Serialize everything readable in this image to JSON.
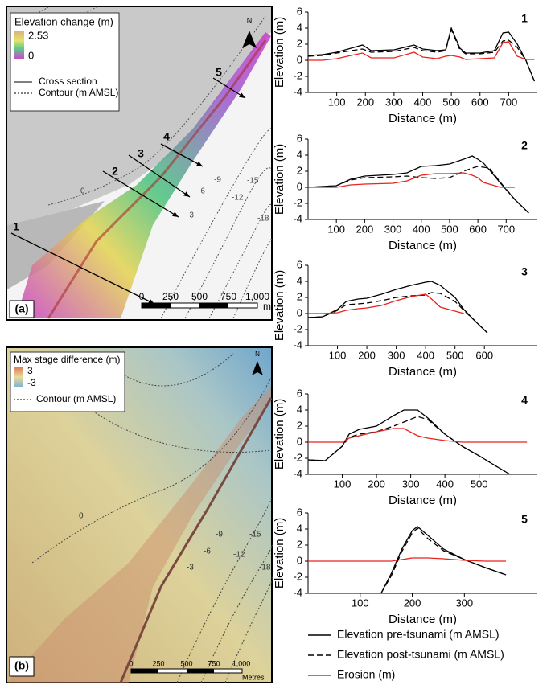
{
  "chart_data": [
    {
      "type": "line",
      "title": "1",
      "x_label": "Distance (m)",
      "y_label": "Elevation (m)",
      "x": [
        0,
        50,
        100,
        150,
        190,
        220,
        300,
        370,
        400,
        450,
        480,
        500,
        530,
        550,
        600,
        650,
        680,
        700,
        730,
        760,
        790
      ],
      "series": [
        {
          "values": [
            0.6,
            0.7,
            1.0,
            1.5,
            1.9,
            1.2,
            1.3,
            1.9,
            1.4,
            1.2,
            1.3,
            4.0,
            1.5,
            0.9,
            0.9,
            1.2,
            3.4,
            3.5,
            2.0,
            0.0,
            -2.6
          ]
        },
        {
          "values": [
            0.5,
            0.6,
            0.9,
            1.2,
            1.4,
            1.0,
            1.1,
            1.6,
            1.2,
            1.0,
            1.2,
            3.8,
            1.3,
            0.8,
            0.8,
            1.0,
            2.4,
            2.5,
            1.6,
            0.0,
            -2.6
          ]
        },
        {
          "values": [
            0,
            0,
            0.2,
            0.6,
            0.9,
            0.3,
            0.3,
            1.0,
            0.4,
            0.2,
            0.5,
            0.6,
            0.4,
            0.1,
            0.2,
            0.3,
            2.2,
            2.3,
            0.5,
            0.1,
            0.1
          ]
        }
      ],
      "xlim": [
        0,
        800
      ],
      "xticks": [
        100,
        200,
        300,
        400,
        500,
        600,
        700
      ],
      "ylim": [
        -4,
        6
      ],
      "yticks": [
        -4,
        -2,
        0,
        2,
        4,
        6
      ]
    },
    {
      "type": "line",
      "title": "2",
      "x_label": "Distance (m)",
      "y_label": "Elevation (m)",
      "x": [
        0,
        100,
        150,
        200,
        300,
        350,
        400,
        450,
        500,
        550,
        580,
        600,
        620,
        640,
        680,
        730,
        780
      ],
      "series": [
        {
          "values": [
            0,
            0.2,
            1.0,
            1.4,
            1.6,
            1.8,
            2.6,
            2.7,
            2.9,
            3.5,
            3.9,
            3.5,
            3.0,
            2.2,
            0.5,
            -1.5,
            -3.2
          ]
        },
        {
          "values": [
            0,
            0.2,
            0.9,
            1.2,
            1.3,
            1.4,
            1.2,
            1.1,
            1.2,
            2.0,
            2.4,
            2.6,
            2.5,
            2.4,
            0.6,
            -1.5,
            -3.2
          ]
        },
        {
          "values": [
            0,
            0,
            0.3,
            0.4,
            0.5,
            0.8,
            1.5,
            1.7,
            1.7,
            1.8,
            1.5,
            1.2,
            0.6,
            0.4,
            0,
            0,
            null
          ]
        }
      ],
      "xlim": [
        0,
        810
      ],
      "xticks": [
        100,
        200,
        300,
        400,
        500,
        600,
        700
      ],
      "ylim": [
        -4,
        6
      ],
      "yticks": [
        -4,
        -2,
        0,
        2,
        4,
        6
      ]
    },
    {
      "type": "line",
      "title": "3",
      "x_label": "Distance (m)",
      "y_label": "Elevation (m)",
      "x": [
        0,
        50,
        100,
        130,
        170,
        200,
        250,
        300,
        350,
        400,
        420,
        450,
        500,
        530,
        570,
        610
      ],
      "series": [
        {
          "values": [
            -0.5,
            -0.4,
            0.5,
            1.5,
            1.8,
            1.9,
            2.4,
            3.0,
            3.5,
            3.9,
            4.0,
            3.5,
            2.0,
            0.5,
            -1.0,
            -2.4
          ]
        },
        {
          "values": [
            -0.5,
            -0.4,
            0.4,
            1.1,
            1.2,
            1.3,
            1.6,
            2.0,
            2.2,
            2.3,
            2.6,
            2.5,
            1.5,
            0.4,
            -1.0,
            -2.4
          ]
        },
        {
          "values": [
            0,
            0,
            0.1,
            0.4,
            0.6,
            0.7,
            1.0,
            1.6,
            2.1,
            2.4,
            1.8,
            0.8,
            0.3,
            0,
            null,
            null
          ]
        }
      ],
      "xlim": [
        0,
        780
      ],
      "xticks": [
        100,
        200,
        300,
        400,
        500,
        600
      ],
      "ylim": [
        -4,
        6
      ],
      "yticks": [
        -4,
        -2,
        0,
        2,
        4,
        6
      ]
    },
    {
      "type": "line",
      "title": "4",
      "x_label": "Distance (m)",
      "y_label": "Elevation (m)",
      "x": [
        0,
        50,
        100,
        120,
        150,
        200,
        250,
        280,
        320,
        350,
        400,
        450,
        500,
        550,
        590,
        640
      ],
      "series": [
        {
          "values": [
            -2.2,
            -2.3,
            -0.5,
            1.0,
            1.6,
            2.0,
            3.3,
            4.0,
            4.0,
            3.0,
            1.0,
            -0.5,
            -1.7,
            -3.0,
            -4.0,
            null
          ]
        },
        {
          "values": [
            -2.2,
            -2.3,
            -0.5,
            0.6,
            1.0,
            1.3,
            2.0,
            2.5,
            3.2,
            2.8,
            1.0,
            -0.5,
            -1.7,
            -3.0,
            -4.0,
            null
          ]
        },
        {
          "values": [
            0,
            0,
            0,
            0.5,
            0.8,
            1.3,
            1.7,
            1.7,
            0.8,
            0.5,
            0.2,
            0,
            0,
            0,
            0,
            0
          ]
        }
      ],
      "xlim": [
        0,
        670
      ],
      "xticks": [
        100,
        200,
        300,
        400,
        500
      ],
      "ylim": [
        -4,
        6
      ],
      "yticks": [
        -4,
        -2,
        0,
        2,
        4,
        6
      ]
    },
    {
      "type": "line",
      "title": "5",
      "x_label": "Distance (m)",
      "y_label": "Elevation (m)",
      "x": [
        0,
        140,
        160,
        180,
        200,
        210,
        230,
        260,
        300,
        340,
        380
      ],
      "series": [
        {
          "values": [
            null,
            -4,
            -1.5,
            1.5,
            3.8,
            4.3,
            3.2,
            1.5,
            0.2,
            -0.8,
            -1.7
          ]
        },
        {
          "values": [
            null,
            -4,
            -1.8,
            1.2,
            3.5,
            4.1,
            2.8,
            1.3,
            0.2,
            -0.8,
            -1.7
          ]
        },
        {
          "values": [
            0,
            0,
            0,
            0.2,
            0.4,
            0.4,
            0.4,
            0.3,
            0.1,
            0,
            0
          ]
        }
      ],
      "xlim": [
        0,
        440
      ],
      "xticks": [
        100,
        200,
        300
      ],
      "ylim": [
        -4,
        6
      ],
      "yticks": [
        -4,
        -2,
        0,
        2,
        4,
        6
      ]
    }
  ],
  "legend": [
    {
      "name": "Elevation pre-tsunami (m AMSL)",
      "color": "#000000",
      "dash": "solid"
    },
    {
      "name": "Elevation post-tsunami (m AMSL)",
      "color": "#000000",
      "dash": "dashed"
    },
    {
      "name": "Erosion (m)",
      "color": "#e8231c",
      "dash": "solid"
    }
  ],
  "maps": [
    {
      "panel": "(a)",
      "legend_title": "Elevation change (m)",
      "scale_max": "2.53",
      "scale_min": "0",
      "legend_items": [
        "Cross section",
        "Contour (m AMSL)"
      ],
      "sections": [
        "1",
        "2",
        "3",
        "4",
        "5"
      ],
      "contours": [
        "0",
        "-3",
        "-6",
        "-9",
        "-12",
        "-15",
        "-18"
      ],
      "scalebar": [
        "0",
        "250",
        "500",
        "750",
        "1,000"
      ],
      "scale_unit": "m",
      "north": "N"
    },
    {
      "panel": "(b)",
      "legend_title": "Max stage difference (m)",
      "scale_max": "3",
      "scale_min": "-3",
      "legend_items": [
        "Contour (m AMSL)"
      ],
      "contours": [
        "0",
        "-3",
        "-6",
        "-9",
        "-12",
        "-15",
        "-18"
      ],
      "scalebar": [
        "0",
        "250",
        "500",
        "750",
        "1,000"
      ],
      "scale_unit": "Metres",
      "north": "N"
    }
  ]
}
